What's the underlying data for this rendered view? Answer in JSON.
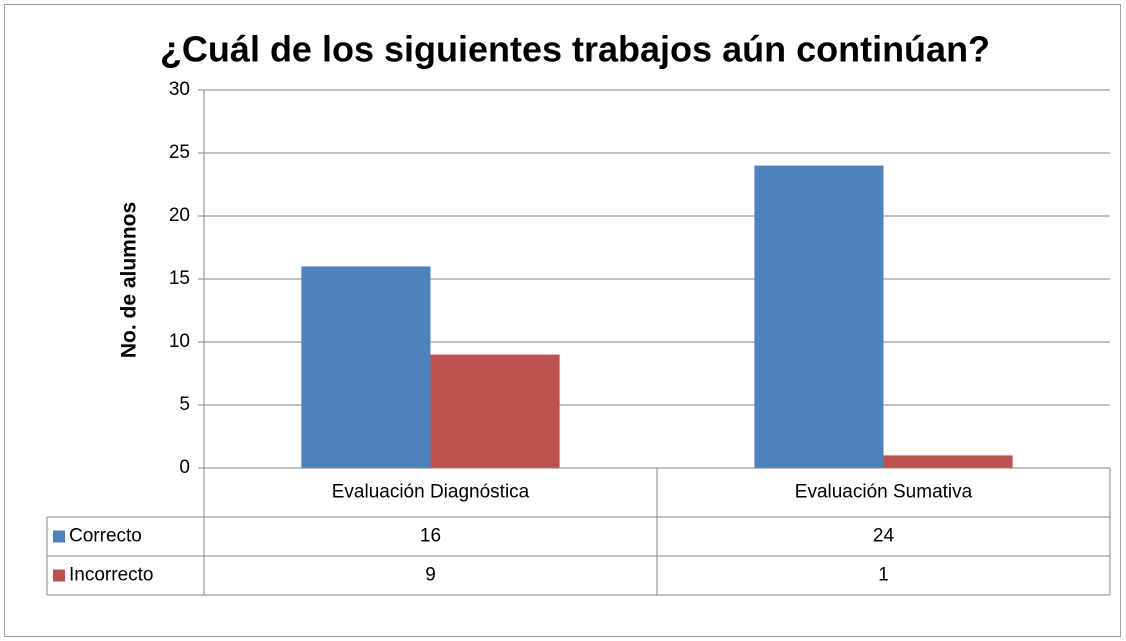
{
  "chart_data": {
    "type": "bar",
    "title": "¿Cuál de los siguientes trabajos aún continúan?",
    "y_label": "No. de alumnos",
    "categories": [
      "Evaluación Diagnóstica",
      "Evaluación Sumativa"
    ],
    "series": [
      {
        "name": "Correcto",
        "color": "#4f81bd",
        "values": [
          16,
          24
        ]
      },
      {
        "name": "Incorrecto",
        "color": "#c0504d",
        "values": [
          9,
          1
        ]
      }
    ],
    "ylim": [
      0,
      30
    ],
    "yticks": [
      0,
      5,
      10,
      15,
      20,
      25,
      30
    ],
    "grid": true,
    "data_table": true
  }
}
